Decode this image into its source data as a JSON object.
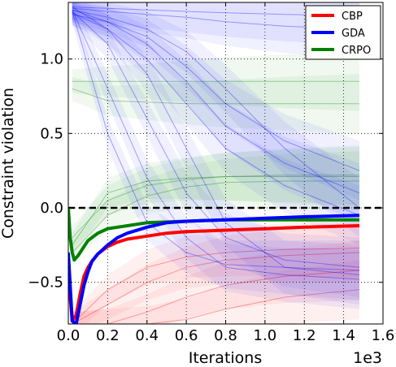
{
  "chart_data": {
    "type": "line",
    "title": "",
    "xlabel": "Iterations",
    "ylabel": "Constraint violation",
    "x_scale_label": "1e3",
    "xlim": [
      0.0,
      1.6
    ],
    "ylim": [
      -0.78,
      1.38
    ],
    "x_ticks": [
      "0.0",
      "0.2",
      "0.4",
      "0.6",
      "0.8",
      "1.0",
      "1.2",
      "1.4",
      "1.6"
    ],
    "y_ticks": [
      "−0.5",
      "0.0",
      "0.5",
      "1.0"
    ],
    "x_tick_values": [
      0.0,
      0.2,
      0.4,
      0.6,
      0.8,
      1.0,
      1.2,
      1.4,
      1.6
    ],
    "y_tick_values": [
      -0.5,
      0.0,
      0.5,
      1.0
    ],
    "grid": true,
    "legend_position": "top-right",
    "reference_line": {
      "y": 0.0,
      "style": "dashed",
      "color": "#000000"
    },
    "series": [
      {
        "name": "CBP",
        "color": "#ff0000",
        "x": [
          0.0,
          0.02,
          0.04,
          0.06,
          0.08,
          0.1,
          0.12,
          0.15,
          0.2,
          0.25,
          0.3,
          0.4,
          0.5,
          0.6,
          0.8,
          1.0,
          1.2,
          1.48
        ],
        "y": [
          -0.45,
          -0.76,
          -0.72,
          -0.58,
          -0.46,
          -0.4,
          -0.36,
          -0.31,
          -0.26,
          -0.23,
          -0.21,
          -0.19,
          -0.17,
          -0.16,
          -0.15,
          -0.14,
          -0.13,
          -0.12
        ]
      },
      {
        "name": "GDA",
        "color": "#0000ff",
        "x": [
          0.0,
          0.02,
          0.04,
          0.06,
          0.08,
          0.1,
          0.12,
          0.15,
          0.2,
          0.25,
          0.3,
          0.4,
          0.5,
          0.6,
          0.8,
          1.0,
          1.2,
          1.48
        ],
        "y": [
          -0.3,
          -0.76,
          -0.78,
          -0.65,
          -0.52,
          -0.43,
          -0.36,
          -0.31,
          -0.25,
          -0.2,
          -0.17,
          -0.13,
          -0.1,
          -0.09,
          -0.08,
          -0.07,
          -0.06,
          -0.05
        ]
      },
      {
        "name": "CRPO",
        "color": "#008000",
        "x": [
          0.0,
          0.01,
          0.02,
          0.03,
          0.05,
          0.08,
          0.1,
          0.15,
          0.2,
          0.3,
          0.4,
          0.6,
          0.8,
          1.0,
          1.2,
          1.48
        ],
        "y": [
          0.0,
          -0.2,
          -0.3,
          -0.35,
          -0.32,
          -0.26,
          -0.22,
          -0.17,
          -0.14,
          -0.12,
          -0.1,
          -0.09,
          -0.08,
          -0.08,
          -0.08,
          -0.08
        ]
      }
    ],
    "background_runs": {
      "blue": [
        [
          1.35,
          1.2,
          0.9,
          0.4,
          -0.1,
          -0.4,
          -0.45
        ],
        [
          1.33,
          1.28,
          1.2,
          1.05,
          0.8,
          0.4,
          0.0
        ],
        [
          1.32,
          1.1,
          0.6,
          0.1,
          -0.2,
          -0.35,
          -0.4
        ],
        [
          1.34,
          1.32,
          1.3,
          1.28,
          1.25,
          1.22,
          1.2
        ],
        [
          1.3,
          1.25,
          1.15,
          0.95,
          0.7,
          0.45,
          0.25
        ],
        [
          1.33,
          0.8,
          0.2,
          -0.2,
          -0.4,
          -0.45,
          -0.48
        ],
        [
          1.35,
          1.34,
          1.33,
          1.32,
          1.31,
          1.3,
          1.29
        ],
        [
          1.31,
          1.2,
          1.0,
          0.7,
          0.4,
          0.15,
          -0.05
        ],
        [
          1.32,
          0.5,
          -0.1,
          -0.3,
          -0.38,
          -0.4,
          -0.42
        ],
        [
          1.33,
          1.25,
          1.1,
          0.85,
          0.55,
          0.3,
          0.1
        ]
      ],
      "green": [
        [
          0.85,
          0.85,
          0.85,
          0.85,
          0.85,
          0.85,
          0.85
        ],
        [
          0.8,
          0.72,
          0.71,
          0.7,
          0.7,
          0.7,
          0.7
        ],
        [
          -0.2,
          0.05,
          0.15,
          0.19,
          0.21,
          0.22,
          0.22
        ],
        [
          -0.3,
          -0.05,
          0.08,
          0.14,
          0.17,
          0.18,
          0.18
        ],
        [
          -0.25,
          0.1,
          0.18,
          0.2,
          0.21,
          0.21,
          0.21
        ]
      ],
      "red": [
        [
          -0.78,
          -0.78,
          -0.7,
          -0.6,
          -0.52,
          -0.46,
          -0.42
        ],
        [
          -0.78,
          -0.65,
          -0.5,
          -0.4,
          -0.35,
          -0.32,
          -0.3
        ],
        [
          -0.78,
          -0.78,
          -0.78,
          -0.75,
          -0.68,
          -0.6,
          -0.55
        ],
        [
          -0.78,
          -0.55,
          -0.4,
          -0.33,
          -0.3,
          -0.28,
          -0.27
        ]
      ],
      "x": [
        0.02,
        0.2,
        0.4,
        0.6,
        0.8,
        1.1,
        1.48
      ]
    }
  }
}
